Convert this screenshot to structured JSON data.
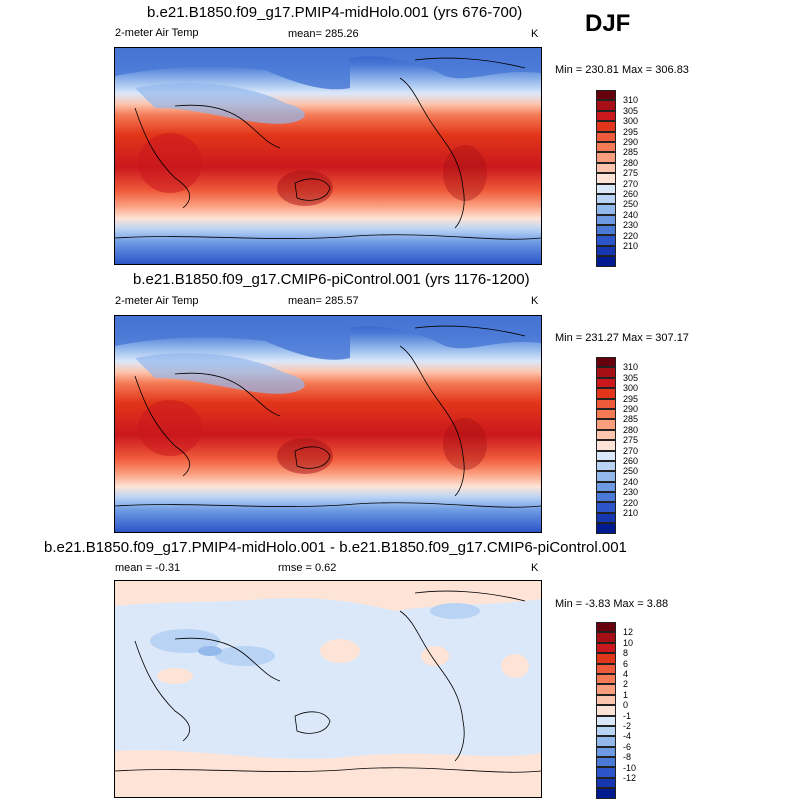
{
  "season": "DJF",
  "panels": [
    {
      "title": "b.e21.B1850.f09_g17.PMIP4-midHolo.001 (yrs 676-700)",
      "left_label": "2-meter Air Temp",
      "center_label": "mean= 285.26",
      "units": "K",
      "minmax": "Min = 230.81 Max = 306.83",
      "colorbar_labels": [
        "310",
        "305",
        "300",
        "295",
        "290",
        "285",
        "280",
        "275",
        "270",
        "260",
        "250",
        "240",
        "230",
        "220",
        "210"
      ],
      "field": "absolute"
    },
    {
      "title": "b.e21.B1850.f09_g17.CMIP6-piControl.001 (yrs 1176-1200)",
      "left_label": "2-meter Air Temp",
      "center_label": "mean= 285.57",
      "units": "K",
      "minmax": "Min = 231.27 Max = 307.17",
      "colorbar_labels": [
        "310",
        "305",
        "300",
        "295",
        "290",
        "285",
        "280",
        "275",
        "270",
        "260",
        "250",
        "240",
        "230",
        "220",
        "210"
      ],
      "field": "absolute"
    },
    {
      "title": "b.e21.B1850.f09_g17.PMIP4-midHolo.001 - b.e21.B1850.f09_g17.CMIP6-piControl.001",
      "left_label": "mean =  -0.31",
      "center_label": "rmse =   0.62",
      "units": "K",
      "minmax": "Min =  -3.83 Max =   3.88",
      "colorbar_labels": [
        "12",
        "10",
        "8",
        "6",
        "4",
        "2",
        "1",
        "0",
        "-1",
        "-2",
        "-4",
        "-6",
        "-8",
        "-10",
        "-12"
      ],
      "field": "difference"
    }
  ],
  "colorbar_colors": [
    "#67000d",
    "#a50f15",
    "#cb181d",
    "#e2361a",
    "#ef5a3a",
    "#f57b57",
    "#fb9e7e",
    "#fdc5ad",
    "#fde4d7",
    "#dbe8fa",
    "#b9d3f4",
    "#93b8ec",
    "#6d9ae3",
    "#4a79d6",
    "#2b55c8",
    "#1637b0",
    "#001a8f"
  ]
}
